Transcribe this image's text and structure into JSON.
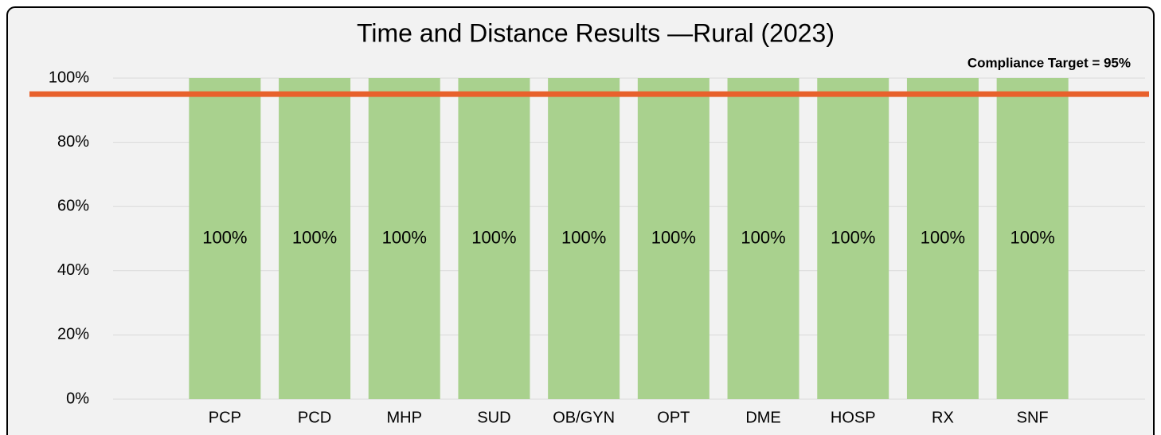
{
  "chart_data": {
    "type": "bar",
    "title": "Time and Distance Results —Rural (2023)",
    "categories": [
      "PCP",
      "PCD",
      "MHP",
      "SUD",
      "OB/GYN",
      "OPT",
      "DME",
      "HOSP",
      "RX",
      "SNF"
    ],
    "values": [
      100,
      100,
      100,
      100,
      100,
      100,
      100,
      100,
      100,
      100
    ],
    "value_labels": [
      "100%",
      "100%",
      "100%",
      "100%",
      "100%",
      "100%",
      "100%",
      "100%",
      "100%",
      "100%"
    ],
    "color": "#a9d18e",
    "ylim": [
      0,
      100
    ],
    "yticks": [
      {
        "value": 0,
        "label": "0%"
      },
      {
        "value": 20,
        "label": "20%"
      },
      {
        "value": 40,
        "label": "40%"
      },
      {
        "value": 60,
        "label": "60%"
      },
      {
        "value": 80,
        "label": "80%"
      },
      {
        "value": 100,
        "label": "100%"
      }
    ],
    "grid": true,
    "target": {
      "value": 95,
      "label": "Compliance Target = 95%",
      "color": "#e8612c"
    }
  }
}
